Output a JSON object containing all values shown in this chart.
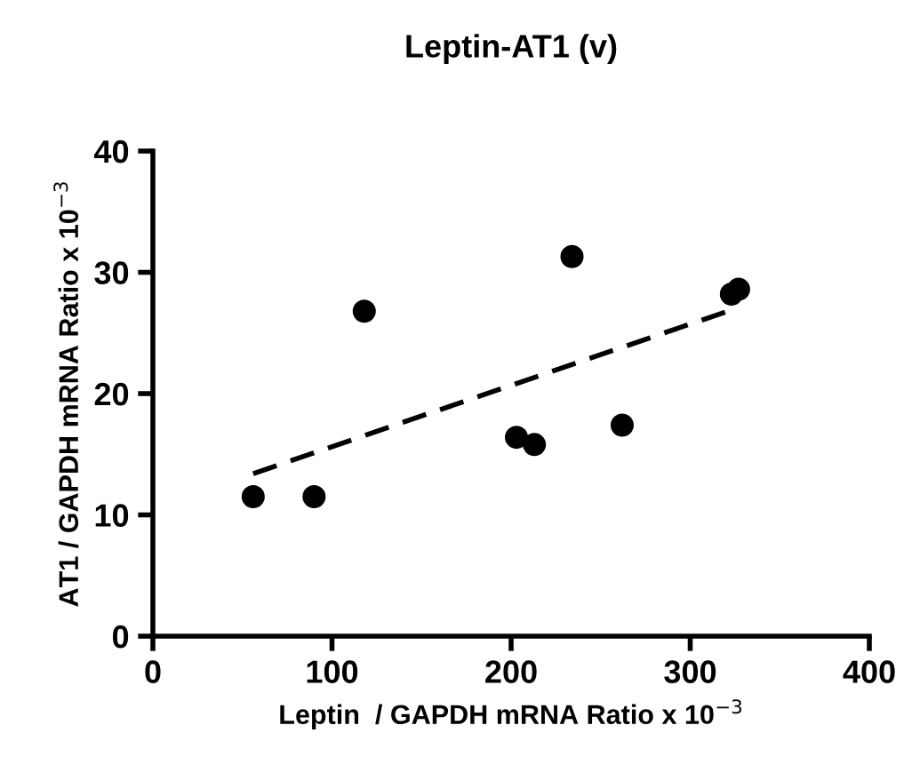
{
  "chart_data": {
    "type": "scatter",
    "title": "Leptin-AT1 (v)",
    "xlabel": "Leptin  / GAPDH mRNA Ratio x 10$^{−3}$",
    "ylabel": "AT1 / GAPDH mRNA Ratio x 10$^{−3}$",
    "xlim": [
      0,
      400
    ],
    "xticks": [
      0,
      100,
      200,
      300,
      400
    ],
    "ylim": [
      0,
      40
    ],
    "yticks": [
      0,
      10,
      20,
      30,
      40
    ],
    "grid": false,
    "legend": false,
    "series": [
      {
        "color": "#000000",
        "marker": "circle",
        "x": [
          56,
          90,
          118,
          203,
          213,
          234,
          262,
          323,
          327
        ],
        "values": [
          11.5,
          11.5,
          26.8,
          16.4,
          15.8,
          31.3,
          17.4,
          28.2,
          28.6
        ]
      },
      {
        "type": "line",
        "color": "#000000",
        "line_style": "dashed",
        "marker": "none",
        "x": [
          56,
          325
        ],
        "values": [
          13.4,
          27.0
        ]
      }
    ]
  }
}
